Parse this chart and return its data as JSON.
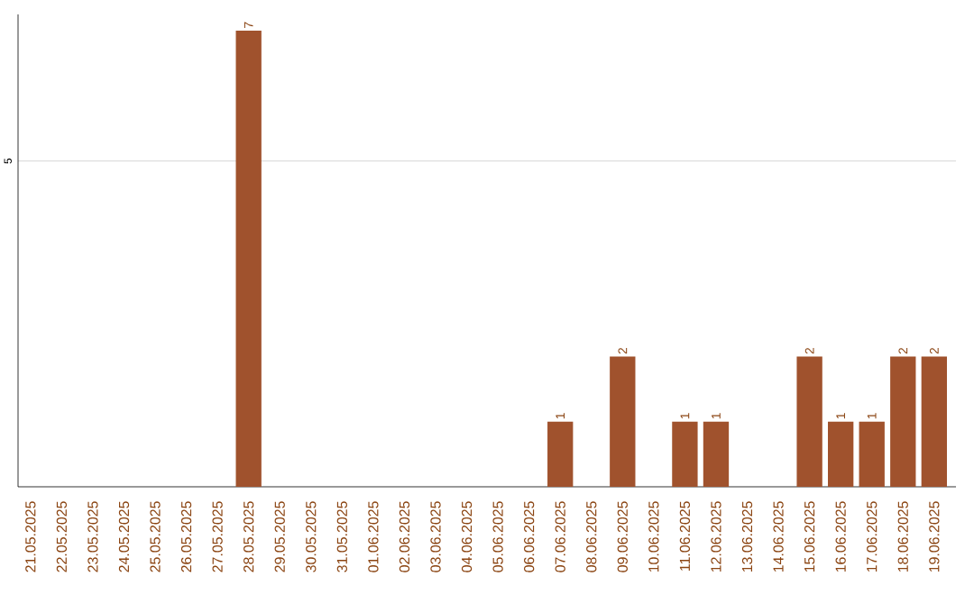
{
  "chart_data": {
    "type": "bar",
    "categories": [
      "21.05.2025",
      "22.05.2025",
      "23.05.2025",
      "24.05.2025",
      "25.05.2025",
      "26.05.2025",
      "27.05.2025",
      "28.05.2025",
      "29.05.2025",
      "30.05.2025",
      "31.05.2025",
      "01.06.2025",
      "02.06.2025",
      "03.06.2025",
      "04.06.2025",
      "05.06.2025",
      "06.06.2025",
      "07.06.2025",
      "08.06.2025",
      "09.06.2025",
      "10.06.2025",
      "11.06.2025",
      "12.06.2025",
      "13.06.2025",
      "14.06.2025",
      "15.06.2025",
      "16.06.2025",
      "17.06.2025",
      "18.06.2025",
      "19.06.2025"
    ],
    "values": [
      0,
      0,
      0,
      0,
      0,
      0,
      0,
      7,
      0,
      0,
      0,
      0,
      0,
      0,
      0,
      0,
      0,
      1,
      0,
      2,
      0,
      1,
      1,
      0,
      0,
      2,
      1,
      1,
      2,
      2
    ],
    "value_labels": [
      null,
      null,
      null,
      null,
      null,
      null,
      null,
      "7",
      null,
      null,
      null,
      null,
      null,
      null,
      null,
      null,
      null,
      "1",
      null,
      "2",
      null,
      "1",
      "1",
      null,
      null,
      "2",
      "1",
      "1",
      "2",
      "2"
    ],
    "color": "#a0522d",
    "ylim": [
      0,
      7.25
    ],
    "yticks": [
      5
    ],
    "grid": "y"
  }
}
